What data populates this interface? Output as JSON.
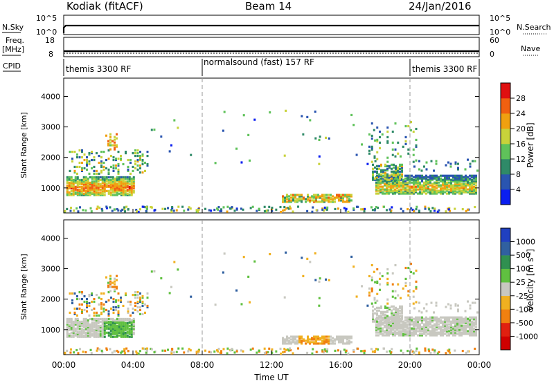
{
  "header": {
    "title": "Kodiak (fitACF)",
    "beam": "Beam 14",
    "date": "24/Jan/2016"
  },
  "strip_labels": {
    "nsky": "N.Sky",
    "nsearch": "N.Search",
    "freq": "Freq.",
    "freq_unit": "[MHz]",
    "nave": "Nave",
    "cpid": "CPID"
  },
  "strip_ticks": {
    "noise_left": [
      "10^5",
      "10^0"
    ],
    "noise_right": [
      "10^5",
      "10^0"
    ],
    "freq_left": [
      "18",
      "8"
    ],
    "nave_right": [
      "60",
      "0"
    ]
  },
  "cpid_segments": [
    {
      "label": "themis 3300 RF",
      "start_hour": 0,
      "end_hour": 8
    },
    {
      "label": "normalsound (fast) 157 RF",
      "start_hour": 8,
      "end_hour": 20
    },
    {
      "label": "themis 3300 RF",
      "start_hour": 20,
      "end_hour": 24
    }
  ],
  "x_axis": {
    "label": "Time UT",
    "ticks": [
      "00:00",
      "04:00",
      "08:00",
      "12:00",
      "16:00",
      "20:00",
      "00:00"
    ],
    "range_hours": [
      0,
      24
    ]
  },
  "y_axis": {
    "label": "Slant Range [km]",
    "ticks": [
      "1000",
      "2000",
      "3000",
      "4000"
    ],
    "range_km": [
      180,
      4600
    ]
  },
  "power_scale": {
    "label": "Power [dB]",
    "ticks": [
      "28",
      "24",
      "20",
      "16",
      "12",
      "8",
      "4"
    ],
    "range": [
      0,
      32
    ],
    "colors": [
      "#0a1ef0",
      "#2a55b0",
      "#2f8a68",
      "#5fc25a",
      "#c8d23a",
      "#f0a010",
      "#f06010",
      "#e01010"
    ]
  },
  "velocity_scale": {
    "label": "Velocity",
    "unit_base": "[m s",
    "unit_exp": "-1",
    "unit_close": "]",
    "ticks": [
      "1000",
      "500",
      "100",
      "25",
      "-25",
      "-100",
      "-500",
      "-1000"
    ],
    "colors": [
      "#2040c0",
      "#3060a0",
      "#309050",
      "#60c040",
      "#c8c8c0",
      "#f0b020",
      "#f08010",
      "#e02010",
      "#d00000"
    ]
  },
  "chart_data": [
    {
      "type": "heatmap",
      "title": "Beam 14",
      "xlabel": "Time UT",
      "ylabel": "Slant Range [km]",
      "colorbar": "Power [dB]",
      "xlim_hours": [
        0,
        24
      ],
      "ylim_km": [
        180,
        4600
      ],
      "features": [
        {
          "hours": [
            0.2,
            4.0
          ],
          "range_km": [
            900,
            1300
          ],
          "power_db": "16-28"
        },
        {
          "hours": [
            12.5,
            16.5
          ],
          "range_km": [
            600,
            800
          ],
          "power_db": "8-20"
        },
        {
          "hours": [
            18.0,
            24.0
          ],
          "range_km": [
            900,
            1500
          ],
          "power_db": "8-28"
        }
      ]
    },
    {
      "type": "heatmap",
      "xlabel": "Time UT",
      "ylabel": "Slant Range [km]",
      "colorbar": "Velocity [m s-1]",
      "xlim_hours": [
        0,
        24
      ],
      "ylim_km": [
        180,
        4600
      ],
      "features": [
        {
          "hours": [
            0.0,
            4.5
          ],
          "range_km": [
            800,
            1400
          ],
          "velocity": "25 to 100 and -25 to 25"
        },
        {
          "hours": [
            12.5,
            16.0
          ],
          "range_km": [
            600,
            900
          ],
          "velocity": "-25 to 25 and -100 to -500"
        },
        {
          "hours": [
            18.0,
            24.0
          ],
          "range_km": [
            900,
            1700
          ],
          "velocity": "-25 to 25"
        }
      ]
    }
  ]
}
